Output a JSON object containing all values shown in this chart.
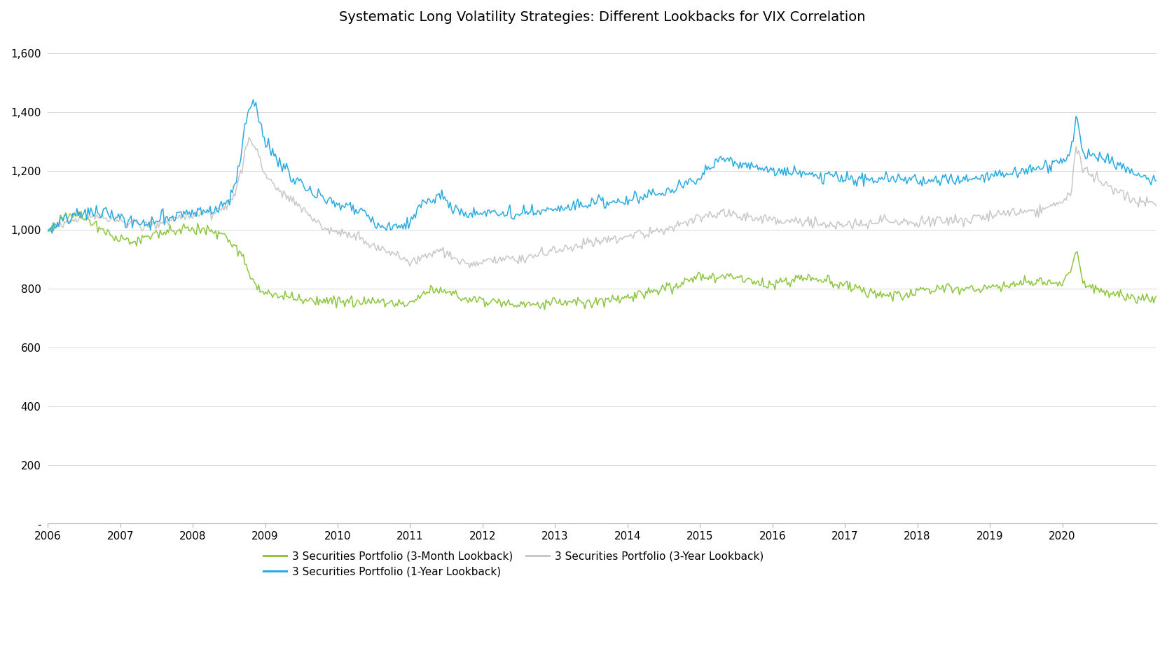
{
  "title": "Systematic Long Volatility Strategies: Different Lookbacks for VIX Correlation",
  "title_fontsize": 14,
  "background_color": "#ffffff",
  "line_colors": {
    "green": "#8dc63f",
    "blue": "#29abe2",
    "gray": "#c8c8c8"
  },
  "line_width": 1.1,
  "legend_labels": {
    "green": "3 Securities Portfolio (3-Month Lookback)",
    "blue": "3 Securities Portfolio (1-Year Lookback)",
    "gray": "3 Securities Portfolio (3-Year Lookback)"
  },
  "ylim": [
    0,
    1650
  ],
  "yticks": [
    0,
    200,
    400,
    600,
    800,
    1000,
    1200,
    1400,
    1600
  ],
  "ytick_labels": [
    "-",
    "200",
    "400",
    "600",
    "800",
    "1,000",
    "1,200",
    "1,400",
    "1,600"
  ],
  "xlim_start": 2006.0,
  "xlim_end": 2021.3,
  "xtick_years": [
    2006,
    2007,
    2008,
    2009,
    2010,
    2011,
    2012,
    2013,
    2014,
    2015,
    2016,
    2017,
    2018,
    2019,
    2020
  ]
}
